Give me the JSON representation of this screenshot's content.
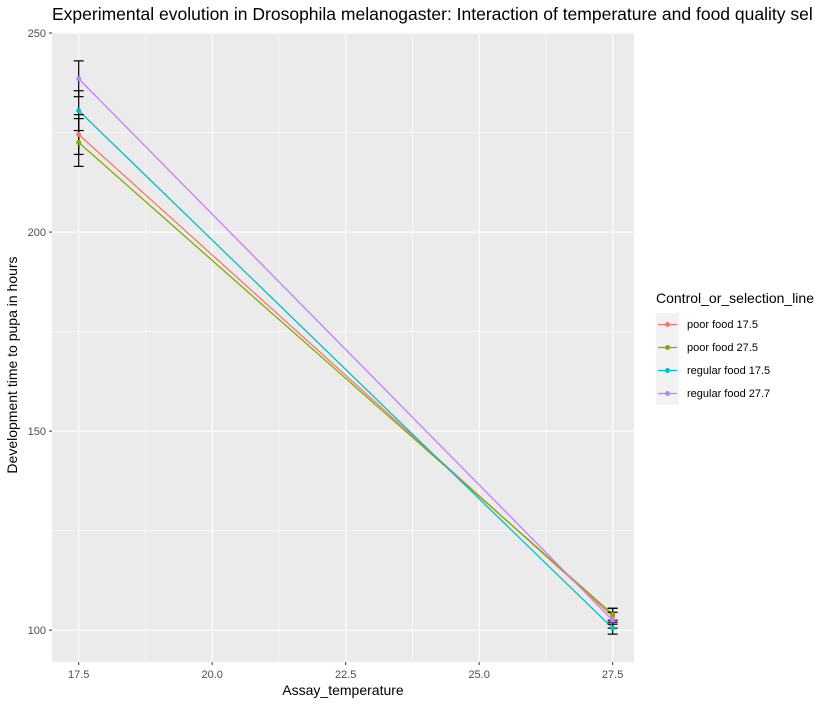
{
  "chart_data": {
    "type": "line",
    "title": "Experimental evolution in Drosophila melanogaster: Interaction of temperature and food quality sel",
    "xlabel": "Assay_temperature",
    "ylabel": "Development time to pupa in hours",
    "xlim": [
      17.0,
      27.9
    ],
    "ylim": [
      92,
      250
    ],
    "x_ticks": [
      17.5,
      20.0,
      22.5,
      25.0,
      27.5
    ],
    "x_tick_labels": [
      "17.5",
      "20.0",
      "22.5",
      "25.0",
      "27.5"
    ],
    "y_ticks": [
      100,
      150,
      200,
      250
    ],
    "y_tick_labels": [
      "100",
      "150",
      "200",
      "250"
    ],
    "grid": true,
    "legend": {
      "title": "Control_or_selection_line",
      "position": "right"
    },
    "x": [
      17.5,
      27.5
    ],
    "series": [
      {
        "name": "poor food 17.5",
        "color": "#F8766D",
        "values": [
          224.5,
          103.5
        ],
        "err_low": [
          219.5,
          101.5
        ],
        "err_high": [
          229.5,
          105.5
        ]
      },
      {
        "name": "poor food 27.5",
        "color": "#7CAE00",
        "values": [
          222.5,
          104.0
        ],
        "err_low": [
          216.5,
          102.5
        ],
        "err_high": [
          228.5,
          105.5
        ]
      },
      {
        "name": "regular food 17.5",
        "color": "#00BFC4",
        "values": [
          230.5,
          100.5
        ],
        "err_low": [
          225.5,
          99.0
        ],
        "err_high": [
          235.5,
          102.0
        ]
      },
      {
        "name": "regular food 27.7",
        "color": "#C77CFF",
        "values": [
          238.5,
          102.5
        ],
        "err_low": [
          234.0,
          100.5
        ],
        "err_high": [
          243.0,
          104.5
        ]
      }
    ]
  }
}
